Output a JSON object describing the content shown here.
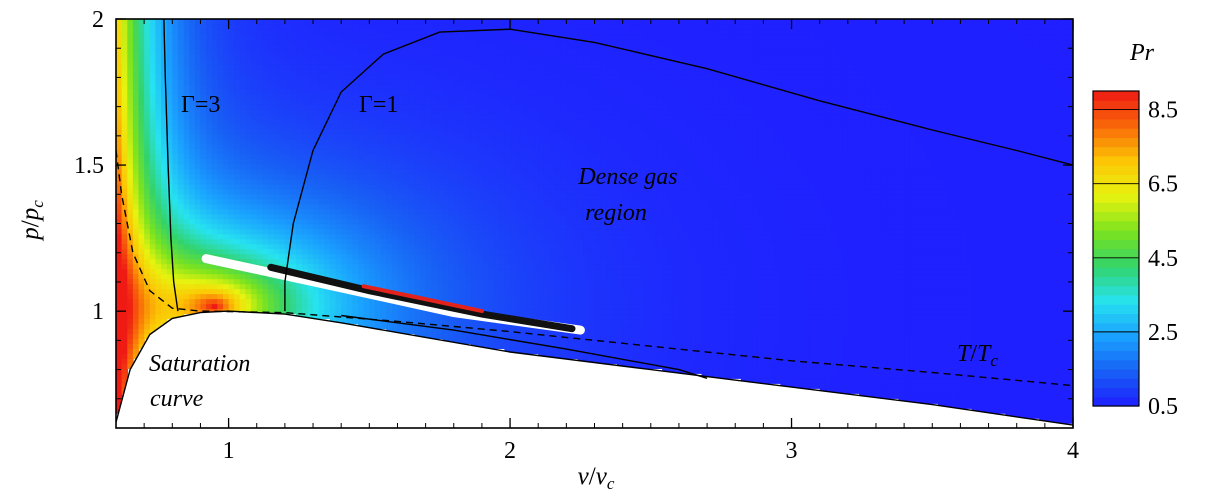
{
  "chart_data": {
    "type": "contour",
    "x_label_var": "v",
    "x_label_sub": "c",
    "y_label_var": "p",
    "y_label_sub": "c",
    "xlim": [
      0.6,
      4.0
    ],
    "ylim": [
      0.6,
      2.0
    ],
    "x_ticks": [
      "1",
      "2",
      "3",
      "4"
    ],
    "x_tick_values": [
      1,
      2,
      3,
      4
    ],
    "y_ticks": [
      "1",
      "1.5",
      "2"
    ],
    "y_tick_values": [
      1,
      1.5,
      2
    ],
    "colorbar": {
      "title": "Pr",
      "range": [
        0.5,
        9.0
      ],
      "tick_labels": [
        "8.5",
        "6.5",
        "4.5",
        "2.5",
        "0.5"
      ],
      "tick_values": [
        8.5,
        6.5,
        4.5,
        2.5,
        0.5
      ],
      "colors": [
        "#1f1fff",
        "#1860f5",
        "#1aa2ff",
        "#27e3f0",
        "#33d36a",
        "#7ce31e",
        "#e7f30f",
        "#fcc705",
        "#f96908",
        "#ef1a14"
      ]
    },
    "annotations": {
      "gamma3": "Γ=3",
      "gamma1": "Γ=1",
      "dense_line1": "Dense gas",
      "dense_line2": "region",
      "saturation_line1": "Saturation",
      "saturation_line2": "curve",
      "t_var": "T",
      "t_sub": "c"
    },
    "curves": {
      "saturation": [
        [
          0.6,
          0.62
        ],
        [
          0.65,
          0.8
        ],
        [
          0.72,
          0.92
        ],
        [
          0.8,
          0.975
        ],
        [
          0.9,
          0.995
        ],
        [
          1.0,
          1.0
        ],
        [
          1.2,
          0.99
        ],
        [
          1.4,
          0.96
        ],
        [
          1.7,
          0.91
        ],
        [
          2.0,
          0.86
        ],
        [
          2.5,
          0.8
        ],
        [
          3.0,
          0.74
        ],
        [
          3.5,
          0.68
        ],
        [
          4.0,
          0.61
        ]
      ],
      "gamma3": [
        [
          0.77,
          2.0
        ],
        [
          0.775,
          1.8
        ],
        [
          0.785,
          1.5
        ],
        [
          0.795,
          1.25
        ],
        [
          0.805,
          1.1
        ],
        [
          0.82,
          1.0
        ]
      ],
      "gamma1": [
        [
          1.2,
          1.0
        ],
        [
          1.2,
          1.1
        ],
        [
          1.23,
          1.3
        ],
        [
          1.3,
          1.55
        ],
        [
          1.4,
          1.75
        ],
        [
          1.55,
          1.88
        ],
        [
          1.75,
          1.955
        ],
        [
          2.0,
          1.965
        ],
        [
          2.3,
          1.92
        ],
        [
          2.7,
          1.83
        ],
        [
          3.1,
          1.72
        ],
        [
          3.5,
          1.62
        ],
        [
          3.8,
          1.55
        ],
        [
          4.0,
          1.5
        ]
      ],
      "gamma1_lower": [
        [
          1.4,
          0.985
        ],
        [
          1.8,
          0.935
        ],
        [
          2.2,
          0.87
        ],
        [
          2.6,
          0.8
        ],
        [
          2.7,
          0.77
        ]
      ],
      "isotherm": [
        [
          0.6,
          1.55
        ],
        [
          0.62,
          1.4
        ],
        [
          0.66,
          1.2
        ],
        [
          0.72,
          1.07
        ],
        [
          0.8,
          1.01
        ],
        [
          0.9,
          1.0
        ],
        [
          1.2,
          0.995
        ],
        [
          1.6,
          0.965
        ],
        [
          2.0,
          0.93
        ],
        [
          2.5,
          0.88
        ],
        [
          3.0,
          0.83
        ],
        [
          3.5,
          0.79
        ],
        [
          4.0,
          0.745
        ]
      ],
      "white_band": [
        [
          0.92,
          1.18
        ],
        [
          1.4,
          1.08
        ],
        [
          1.8,
          0.995
        ],
        [
          2.25,
          0.935
        ]
      ],
      "black_band": [
        [
          1.15,
          1.15
        ],
        [
          1.5,
          1.07
        ],
        [
          1.9,
          0.99
        ],
        [
          2.22,
          0.94
        ]
      ],
      "red_band": [
        [
          1.48,
          1.085
        ],
        [
          1.68,
          1.045
        ],
        [
          1.9,
          1.0
        ]
      ]
    }
  }
}
